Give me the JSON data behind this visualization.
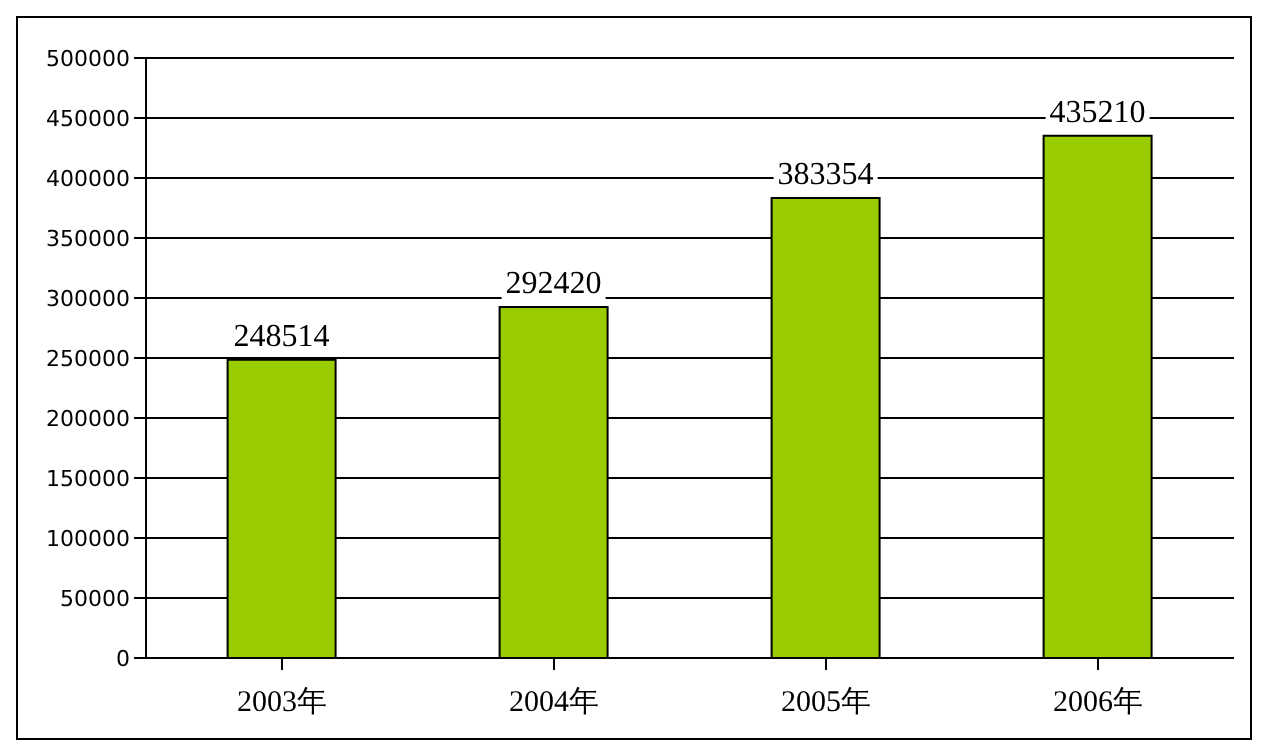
{
  "chart_data": {
    "type": "bar",
    "categories": [
      "2003年",
      "2004年",
      "2005年",
      "2006年"
    ],
    "values": [
      248514,
      292420,
      383354,
      435210
    ],
    "color": "#99cc00",
    "ylim": [
      0,
      500000
    ],
    "yticks": [
      0,
      50000,
      100000,
      150000,
      200000,
      250000,
      300000,
      350000,
      400000,
      450000,
      500000
    ],
    "grid": "y",
    "data_labels": true,
    "legend": false
  }
}
